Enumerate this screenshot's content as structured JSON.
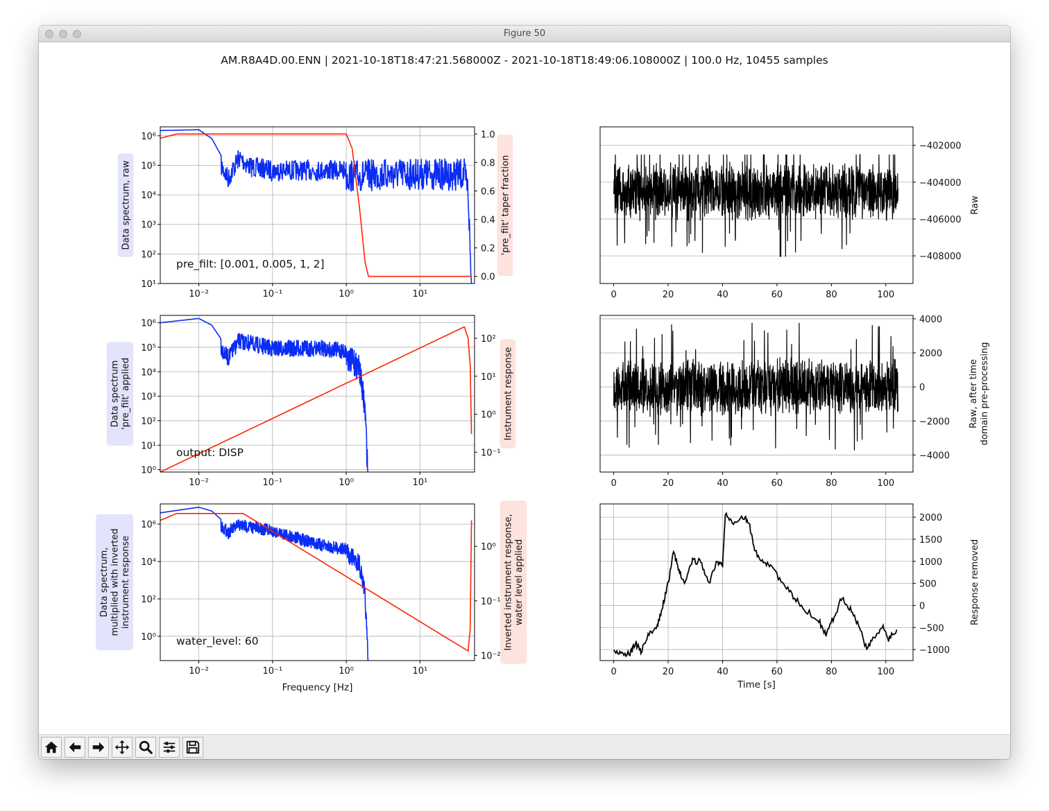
{
  "window": {
    "title": "Figure 50",
    "traffic_lights": [
      "close",
      "minimize",
      "zoom"
    ]
  },
  "figure": {
    "suptitle": "AM.R8A4D.00.ENN | 2021-10-18T18:47:21.568000Z - 2021-10-18T18:49:06.108000Z | 100.0 Hz, 10455 samples"
  },
  "toolbar": {
    "buttons": [
      {
        "name": "home-button",
        "icon": "home-icon"
      },
      {
        "name": "back-button",
        "icon": "arrow-left-icon"
      },
      {
        "name": "forward-button",
        "icon": "arrow-right-icon"
      },
      {
        "name": "pan-button",
        "icon": "move-icon"
      },
      {
        "name": "zoom-button",
        "icon": "magnifier-icon"
      },
      {
        "name": "configure-subplots-button",
        "icon": "sliders-icon"
      },
      {
        "name": "save-button",
        "icon": "floppy-disk-icon"
      }
    ]
  },
  "colors": {
    "spectrum": "#0a2cf5",
    "response": "#ff2200",
    "trace": "#000000",
    "grid": "#b0b0b0",
    "blue_label_bg": "#e3e3fb",
    "red_label_bg": "#fde2de"
  },
  "chart_data": [
    {
      "panel": "top-left",
      "type": "line",
      "xscale": "log",
      "xlim": [
        0.003,
        55
      ],
      "x_ticks": [
        "10⁻²",
        "10⁻¹",
        "10⁰",
        "10¹"
      ],
      "yscale": "log",
      "ylim": [
        10,
        2000000
      ],
      "y_ticks": [
        "10⁶",
        "10⁵",
        "10⁴",
        "10³",
        "10²",
        "10¹"
      ],
      "ylabel": "Data spectrum, raw",
      "annotation": "pre_filt: [0.001, 0.005, 1, 2]",
      "y2label": "'pre_filt' taper fraction",
      "y2lim": [
        0,
        1
      ],
      "y2_ticks": [
        "1.0",
        "0.8",
        "0.6",
        "0.4",
        "0.2",
        "0.0"
      ],
      "series": [
        {
          "axis": "left",
          "color_key": "spectrum",
          "noisy": true,
          "points": [
            [
              0.003,
              1500000
            ],
            [
              0.01,
              1600000
            ],
            [
              0.015,
              800000
            ],
            [
              0.025,
              80000
            ],
            [
              0.035,
              400000
            ],
            [
              0.05,
              200000
            ],
            [
              0.1,
              150000
            ],
            [
              0.3,
              150000
            ],
            [
              1,
              150000
            ],
            [
              5,
              180000
            ],
            [
              40,
              170000
            ],
            [
              45,
              50000
            ],
            [
              50,
              20
            ]
          ]
        },
        {
          "axis": "right",
          "color_key": "response",
          "points": [
            [
              0.003,
              0.97
            ],
            [
              0.005,
              1.0
            ],
            [
              1.0,
              1.0
            ],
            [
              1.2,
              0.9
            ],
            [
              1.5,
              0.5
            ],
            [
              1.8,
              0.1
            ],
            [
              2.0,
              0.0
            ],
            [
              50,
              0.0
            ]
          ]
        }
      ]
    },
    {
      "panel": "middle-left",
      "type": "line",
      "xscale": "log",
      "xlim": [
        0.003,
        55
      ],
      "x_ticks": [
        "10⁻²",
        "10⁻¹",
        "10⁰",
        "10¹"
      ],
      "yscale": "log",
      "ylim": [
        0.8,
        2000000
      ],
      "y_ticks": [
        "10⁶",
        "10⁵",
        "10⁴",
        "10³",
        "10²",
        "10¹",
        "10⁰"
      ],
      "ylabel": "Data spectrum\n'pre_filt' applied",
      "annotation": "output: DISP",
      "y2label": "Instrument response",
      "y2_ticks": [
        "10²",
        "10¹",
        "10⁰",
        "10⁻¹"
      ],
      "series": [
        {
          "axis": "left",
          "color_key": "spectrum",
          "noisy": true,
          "points": [
            [
              0.003,
              1000000
            ],
            [
              0.01,
              1500000
            ],
            [
              0.015,
              800000
            ],
            [
              0.025,
              80000
            ],
            [
              0.035,
              400000
            ],
            [
              0.1,
              200000
            ],
            [
              0.5,
              200000
            ],
            [
              1.0,
              150000
            ],
            [
              1.5,
              50000
            ],
            [
              1.8,
              1000
            ],
            [
              2.0,
              0.8
            ]
          ]
        },
        {
          "axis": "right",
          "color_key": "response",
          "points": [
            [
              0.003,
              0.03
            ],
            [
              40,
              200
            ],
            [
              45,
              100
            ],
            [
              48,
              20
            ],
            [
              50,
              0.3
            ]
          ]
        }
      ]
    },
    {
      "panel": "bottom-left",
      "type": "line",
      "xscale": "log",
      "xlim": [
        0.003,
        55
      ],
      "x_ticks": [
        "10⁻²",
        "10⁻¹",
        "10⁰",
        "10¹"
      ],
      "xlabel": "Frequency [Hz]",
      "yscale": "log",
      "ylim": [
        0.05,
        12000000
      ],
      "y_ticks": [
        "10⁶",
        "10⁴",
        "10²",
        "10⁰"
      ],
      "ylabel": "Data spectrum,\nmultiplied with inverted\ninstrument response",
      "annotation": "water_level: 60",
      "y2label": "Inverted instrument response,\nwater level applied",
      "y2_ticks": [
        "10⁰",
        "10⁻¹",
        "10⁻²"
      ],
      "series": [
        {
          "axis": "left",
          "color_key": "spectrum",
          "noisy": true,
          "points": [
            [
              0.003,
              4000000
            ],
            [
              0.01,
              8000000
            ],
            [
              0.015,
              5000000
            ],
            [
              0.025,
              800000
            ],
            [
              0.035,
              2000000
            ],
            [
              0.1,
              1000000
            ],
            [
              0.5,
              150000
            ],
            [
              1.0,
              100000
            ],
            [
              1.5,
              30000
            ],
            [
              1.8,
              500
            ],
            [
              2.0,
              0.05
            ]
          ]
        },
        {
          "axis": "right",
          "color_key": "response",
          "points": [
            [
              0.003,
              3
            ],
            [
              0.005,
              4
            ],
            [
              0.04,
              4
            ],
            [
              45,
              0.012
            ],
            [
              48,
              0.03
            ],
            [
              50,
              3
            ]
          ]
        }
      ]
    },
    {
      "panel": "top-right",
      "type": "line",
      "xlim": [
        -5,
        110
      ],
      "x_ticks": [
        "0",
        "20",
        "40",
        "60",
        "80",
        "100"
      ],
      "ylim": [
        -409500,
        -401000
      ],
      "y_ticks": [
        "−402000",
        "−404000",
        "−406000",
        "−408000"
      ],
      "ylabel": "Raw",
      "series": [
        {
          "color_key": "trace",
          "kind": "noise",
          "x_range": [
            0,
            104.5
          ],
          "center": -404500,
          "amplitude": 1700,
          "spike_extent": [
            -408800,
            -402500
          ]
        }
      ]
    },
    {
      "panel": "middle-right",
      "type": "line",
      "xlim": [
        -5,
        110
      ],
      "x_ticks": [
        "0",
        "20",
        "40",
        "60",
        "80",
        "100"
      ],
      "ylim": [
        -5000,
        4200
      ],
      "y_ticks": [
        "4000",
        "2000",
        "0",
        "−2000",
        "−4000"
      ],
      "ylabel": "Raw, after time\ndomain pre-processing",
      "series": [
        {
          "color_key": "trace",
          "kind": "noise",
          "x_range": [
            0,
            104.5
          ],
          "center": 0,
          "amplitude": 1800,
          "spike_extent": [
            -4400,
            4000
          ]
        }
      ]
    },
    {
      "panel": "bottom-right",
      "type": "line",
      "xlim": [
        -5,
        110
      ],
      "x_ticks": [
        "0",
        "20",
        "40",
        "60",
        "80",
        "100"
      ],
      "xlabel": "Time [s]",
      "ylim": [
        -1250,
        2300
      ],
      "y_ticks": [
        "2000",
        "1500",
        "1000",
        "500",
        "0",
        "−500",
        "−1000"
      ],
      "ylabel": "Response removed",
      "series": [
        {
          "color_key": "trace",
          "kind": "wander",
          "points": [
            [
              0,
              -1000
            ],
            [
              3,
              -1100
            ],
            [
              6,
              -1100
            ],
            [
              8,
              -850
            ],
            [
              10,
              -1050
            ],
            [
              13,
              -650
            ],
            [
              16,
              -500
            ],
            [
              18,
              0
            ],
            [
              20,
              500
            ],
            [
              22,
              1200
            ],
            [
              24,
              800
            ],
            [
              26,
              500
            ],
            [
              29,
              1000
            ],
            [
              32,
              1000
            ],
            [
              35,
              500
            ],
            [
              38,
              1000
            ],
            [
              40,
              900
            ],
            [
              41,
              2100
            ],
            [
              44,
              1900
            ],
            [
              48,
              2000
            ],
            [
              50,
              1800
            ],
            [
              52,
              1200
            ],
            [
              55,
              1000
            ],
            [
              58,
              900
            ],
            [
              62,
              500
            ],
            [
              66,
              200
            ],
            [
              70,
              -100
            ],
            [
              75,
              -300
            ],
            [
              78,
              -650
            ],
            [
              81,
              -250
            ],
            [
              84,
              200
            ],
            [
              87,
              -100
            ],
            [
              90,
              -450
            ],
            [
              93,
              -1000
            ],
            [
              96,
              -700
            ],
            [
              99,
              -500
            ],
            [
              101,
              -750
            ],
            [
              104,
              -550
            ]
          ]
        }
      ]
    }
  ]
}
